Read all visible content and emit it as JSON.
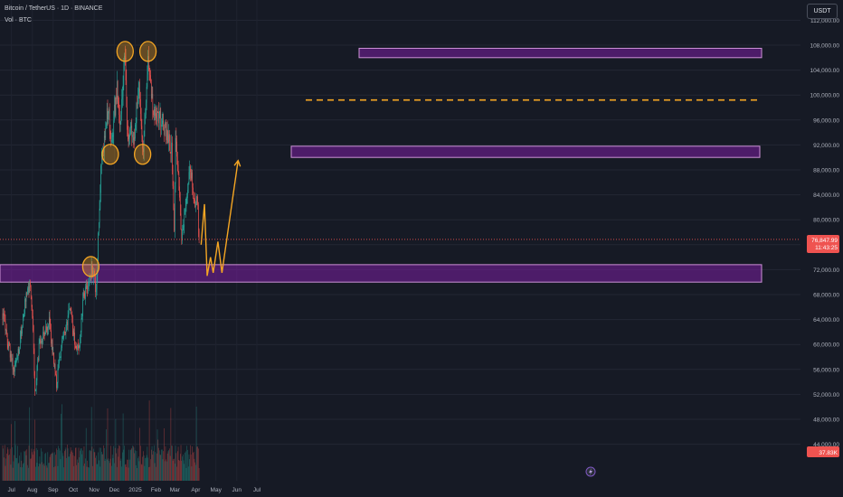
{
  "header": {
    "title": "Bitcoin / TetherUS · 1D · BINANCE",
    "volume_label": "Vol · BTC"
  },
  "currency_button": "USDT",
  "price_badge": {
    "price": "76,847.99",
    "countdown": "11:43:25"
  },
  "volume_badge": "37.83K",
  "colors": {
    "background": "#161a25",
    "up": "#26a69a",
    "down": "#ef5350",
    "zone_fill": "#7b1fa2",
    "zone_stroke": "#ce93d8",
    "projection": "#f5a623",
    "marker": "#f5a623"
  },
  "chart_data": {
    "type": "candlestick",
    "y_axis_ticks": [
      112000,
      108000,
      104000,
      100000,
      96000,
      92000,
      88000,
      84000,
      80000,
      76000,
      72000,
      68000,
      64000,
      60000,
      56000,
      52000,
      48000,
      44000
    ],
    "y_axis_tick_labels": [
      "112,000.00",
      "108,000.00",
      "104,000.00",
      "100,000.00",
      "96,000.00",
      "92,000.00",
      "88,000.00",
      "84,000.00",
      "80,000.00",
      "76,000.00",
      "72,000.00",
      "68,000.00",
      "64,000.00",
      "60,000.00",
      "56,000.00",
      "52,000.00",
      "48,000.00",
      "44,000.00"
    ],
    "x_axis_labels": [
      "Jul",
      "Aug",
      "Sep",
      "Oct",
      "Nov",
      "Dec",
      "2025",
      "Feb",
      "Mar",
      "Apr",
      "May",
      "Jun",
      "Jul"
    ],
    "date_range": [
      "2024-06-18",
      "2025-04-06"
    ],
    "price_path": [
      [
        "2024-06-18",
        65000
      ],
      [
        "2024-06-24",
        61000
      ],
      [
        "2024-07-05",
        55500
      ],
      [
        "2024-07-14",
        60500
      ],
      [
        "2024-07-22",
        67500
      ],
      [
        "2024-07-29",
        69500
      ],
      [
        "2024-08-02",
        62000
      ],
      [
        "2024-08-05",
        52500
      ],
      [
        "2024-08-12",
        60500
      ],
      [
        "2024-08-26",
        63500
      ],
      [
        "2024-09-06",
        53800
      ],
      [
        "2024-09-14",
        60500
      ],
      [
        "2024-09-27",
        65800
      ],
      [
        "2024-10-03",
        60200
      ],
      [
        "2024-10-10",
        59800
      ],
      [
        "2024-10-16",
        67500
      ],
      [
        "2024-10-29",
        72500
      ],
      [
        "2024-11-04",
        68500
      ],
      [
        "2024-11-11",
        88000
      ],
      [
        "2024-11-22",
        98500
      ],
      [
        "2024-11-26",
        92000
      ],
      [
        "2024-12-05",
        101000
      ],
      [
        "2024-12-09",
        95000
      ],
      [
        "2024-12-17",
        107500
      ],
      [
        "2024-12-20",
        94000
      ],
      [
        "2024-12-31",
        93500
      ],
      [
        "2025-01-06",
        102000
      ],
      [
        "2025-01-13",
        91000
      ],
      [
        "2025-01-20",
        107000
      ],
      [
        "2025-01-27",
        97500
      ],
      [
        "2025-02-07",
        96500
      ],
      [
        "2025-02-24",
        91500
      ],
      [
        "2025-02-28",
        79000
      ],
      [
        "2025-03-02",
        94500
      ],
      [
        "2025-03-11",
        76600
      ],
      [
        "2025-03-20",
        84000
      ],
      [
        "2025-03-24",
        88800
      ],
      [
        "2025-03-31",
        82000
      ],
      [
        "2025-04-03",
        83500
      ],
      [
        "2025-04-06",
        76848
      ]
    ],
    "horizontal_zones": [
      {
        "from": 106000,
        "to": 107500
      },
      {
        "from": 90000,
        "to": 91800
      },
      {
        "from": 70000,
        "to": 72800
      }
    ],
    "dashed_level": 99200,
    "projection_path": [
      [
        "2025-04-09",
        76000
      ],
      [
        "2025-04-14",
        82500
      ],
      [
        "2025-04-18",
        71000
      ],
      [
        "2025-04-23",
        74000
      ],
      [
        "2025-04-27",
        71500
      ],
      [
        "2025-05-04",
        76500
      ],
      [
        "2025-05-10",
        71500
      ],
      [
        "2025-06-03",
        89500
      ]
    ],
    "circled_points": [
      [
        "2024-10-27",
        72500
      ],
      [
        "2024-11-25",
        90500
      ],
      [
        "2024-12-17",
        107000
      ],
      [
        "2025-01-12",
        90500
      ],
      [
        "2025-01-20",
        107000
      ]
    ],
    "current_price": 76847.99,
    "current_volume": 37830
  }
}
